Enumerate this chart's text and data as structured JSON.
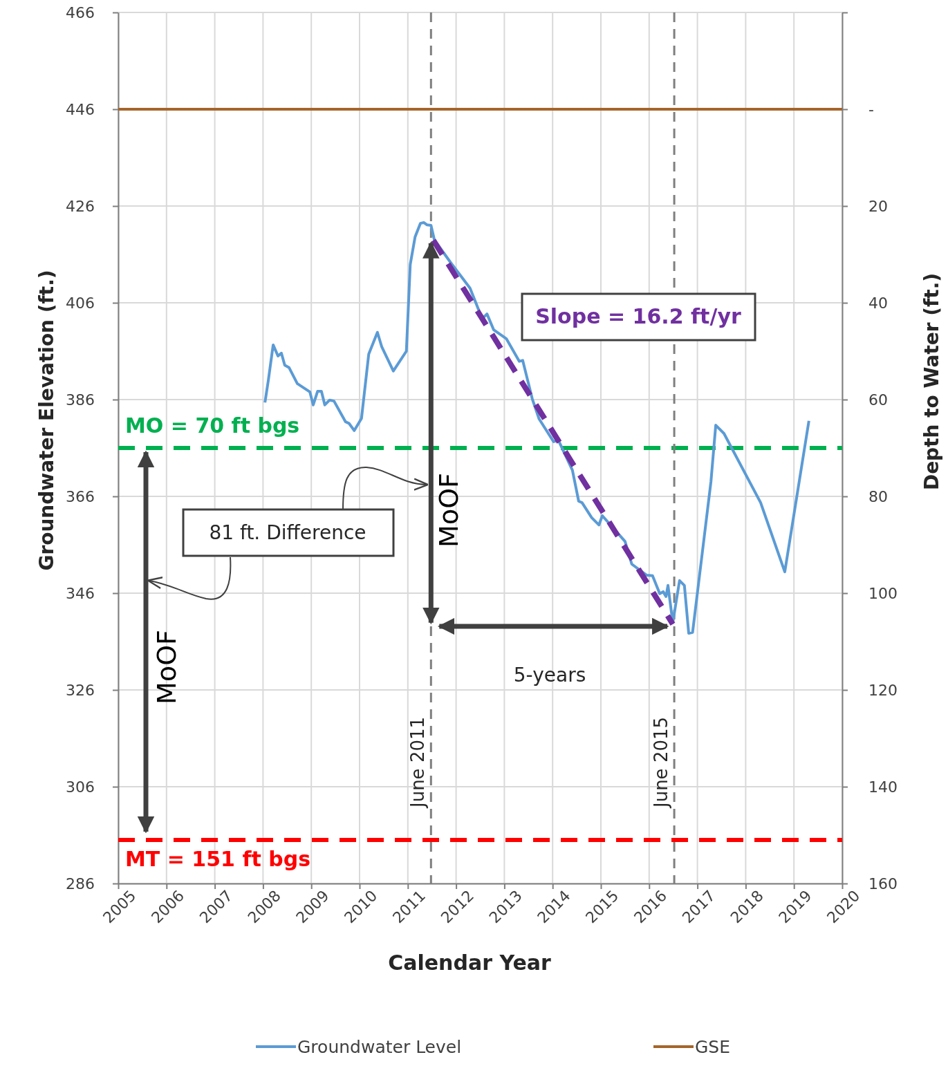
{
  "chart_data": {
    "type": "line",
    "xlabel": "Calendar Year",
    "ylabel": "Groundwater Elevation (ft.)",
    "y2label": "Depth to Water (ft.)",
    "xlim": [
      2005,
      2020
    ],
    "xticks": [
      2005,
      2006,
      2007,
      2008,
      2009,
      2010,
      2011,
      2012,
      2013,
      2014,
      2015,
      2016,
      2017,
      2018,
      2019,
      2020
    ],
    "ylim": [
      286,
      466
    ],
    "yticks": [
      286,
      306,
      326,
      346,
      366,
      386,
      406,
      426,
      446,
      466
    ],
    "y2lim": [
      160,
      -20
    ],
    "y2ticks": [
      {
        "value": -20,
        "label": null
      },
      {
        "value": 0,
        "label": "-"
      },
      20,
      40,
      60,
      80,
      100,
      120,
      140,
      160
    ],
    "grid": true,
    "legend": "bottom",
    "marker": "none",
    "series": [
      {
        "name": "Groundwater Level",
        "color": "#5b9bd5",
        "x": [
          2008.04,
          2008.11,
          2008.21,
          2008.31,
          2008.38,
          2008.45,
          2008.54,
          2008.71,
          2008.97,
          2009.04,
          2009.13,
          2009.21,
          2009.28,
          2009.38,
          2009.47,
          2009.71,
          2009.78,
          2009.89,
          2010.04,
          2010.19,
          2010.37,
          2010.46,
          2010.7,
          2010.97,
          2011.05,
          2011.15,
          2011.26,
          2011.33,
          2011.4,
          2011.48,
          2011.55,
          2011.91,
          2012.11,
          2012.29,
          2012.54,
          2012.64,
          2012.78,
          2013.04,
          2013.31,
          2013.38,
          2013.58,
          2013.72,
          2014.02,
          2014.12,
          2014.41,
          2014.54,
          2014.61,
          2014.81,
          2014.96,
          2015.03,
          2015.5,
          2015.64,
          2015.95,
          2016.07,
          2016.22,
          2016.29,
          2016.35,
          2016.39,
          2016.49,
          2016.63,
          2016.73,
          2016.82,
          2016.9,
          2017.28,
          2017.38,
          2017.55,
          2018.31,
          2018.81,
          2019.31
        ],
        "values": [
          385.4,
          390,
          397.3,
          395,
          395.6,
          393.1,
          392.6,
          389.3,
          387.6,
          384.9,
          387.7,
          387.7,
          384.9,
          385.9,
          385.7,
          381.4,
          381.1,
          379.6,
          382.1,
          395.4,
          399.9,
          396.9,
          391.9,
          396,
          413.9,
          419.6,
          422.4,
          422.6,
          422.1,
          422,
          419,
          414,
          411.4,
          409,
          402.7,
          403.7,
          400.4,
          398.6,
          393.9,
          394.1,
          386.1,
          382,
          377.3,
          377.6,
          371.4,
          365,
          364.7,
          361.6,
          360.1,
          362,
          356.7,
          352,
          349.7,
          349.6,
          345.9,
          346.3,
          345.3,
          347.6,
          339.9,
          348.6,
          347.6,
          337.7,
          337.9,
          369,
          380.7,
          379,
          364.7,
          350.4,
          381.6
        ]
      },
      {
        "name": "GSE",
        "color": "#a5652a",
        "x": [
          2005,
          2020
        ],
        "values": [
          446,
          446
        ]
      },
      {
        "color": "#7030a0",
        "line_style": "dashed",
        "x": [
          2011.53,
          2016.49
        ],
        "values": [
          418.9,
          339.6
        ]
      }
    ],
    "ref_lines": [
      {
        "axis": "y2",
        "value": 70,
        "label": "MO = 70 ft bgs",
        "color": "#00b050",
        "line_style": "dashed"
      },
      {
        "axis": "y2",
        "value": 151,
        "label": "MT = 151 ft bgs",
        "color": "#ff0000",
        "line_style": "dashed"
      },
      {
        "axis": "x",
        "value": 2011.48,
        "label": "June 2011",
        "color": "#7f7f7f",
        "line_style": "dashed"
      },
      {
        "axis": "x",
        "value": 2016.52,
        "label": "June 2015",
        "color": "#7f7f7f",
        "line_style": "dashed"
      }
    ],
    "annotations": [
      "Slope = 16.2 ft/yr",
      "81 ft. Difference",
      "MoOF",
      "MoOF",
      "5-years"
    ]
  }
}
